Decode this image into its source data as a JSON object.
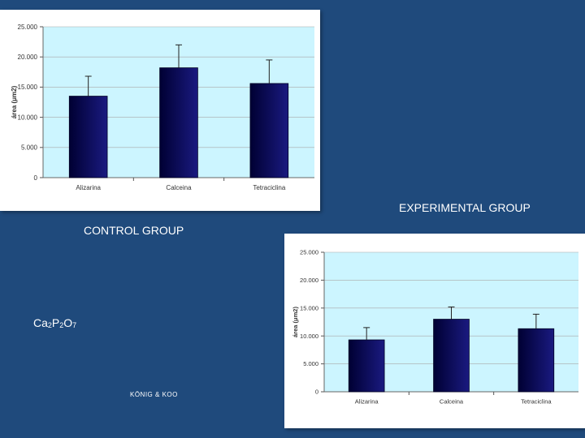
{
  "labels": {
    "experimental": "EXPERIMENTAL GROUP",
    "control": "CONTROL GROUP",
    "formula": {
      "p1": "Ca",
      "s1": "2",
      "p2": "P",
      "s2": "2",
      "p3": "O",
      "s3": "7"
    },
    "credit": "KÖNIG & KOO"
  },
  "colors": {
    "plot_bg": "#ccf5ff",
    "bar_dark": "#000033",
    "bar_light": "#1a1a80",
    "background": "#1f4a7c"
  },
  "chart_data": [
    {
      "type": "bar",
      "title": "",
      "xlabel": "",
      "ylabel": "área (μm2)",
      "categories": [
        "Alizarina",
        "Calceina",
        "Tetraciclina"
      ],
      "values": [
        13500,
        18200,
        15600
      ],
      "errors": [
        3300,
        3800,
        3900
      ],
      "ylim": [
        0,
        25000
      ],
      "yticks": [
        0,
        5000,
        10000,
        15000,
        20000,
        25000
      ],
      "ytick_labels": [
        "0",
        "5.000",
        "10.000",
        "15.000",
        "20.000",
        "25.000"
      ],
      "grid": true
    },
    {
      "type": "bar",
      "title": "",
      "xlabel": "",
      "ylabel": "área (μm2)",
      "categories": [
        "Alizarina",
        "Calceina",
        "Tetraciclina"
      ],
      "values": [
        9300,
        13000,
        11300
      ],
      "errors": [
        2200,
        2200,
        2600
      ],
      "ylim": [
        0,
        25000
      ],
      "yticks": [
        0,
        5000,
        10000,
        15000,
        20000,
        25000
      ],
      "ytick_labels": [
        "0",
        "5.000",
        "10.000",
        "15.000",
        "20.000",
        "25.000"
      ],
      "grid": true
    }
  ]
}
